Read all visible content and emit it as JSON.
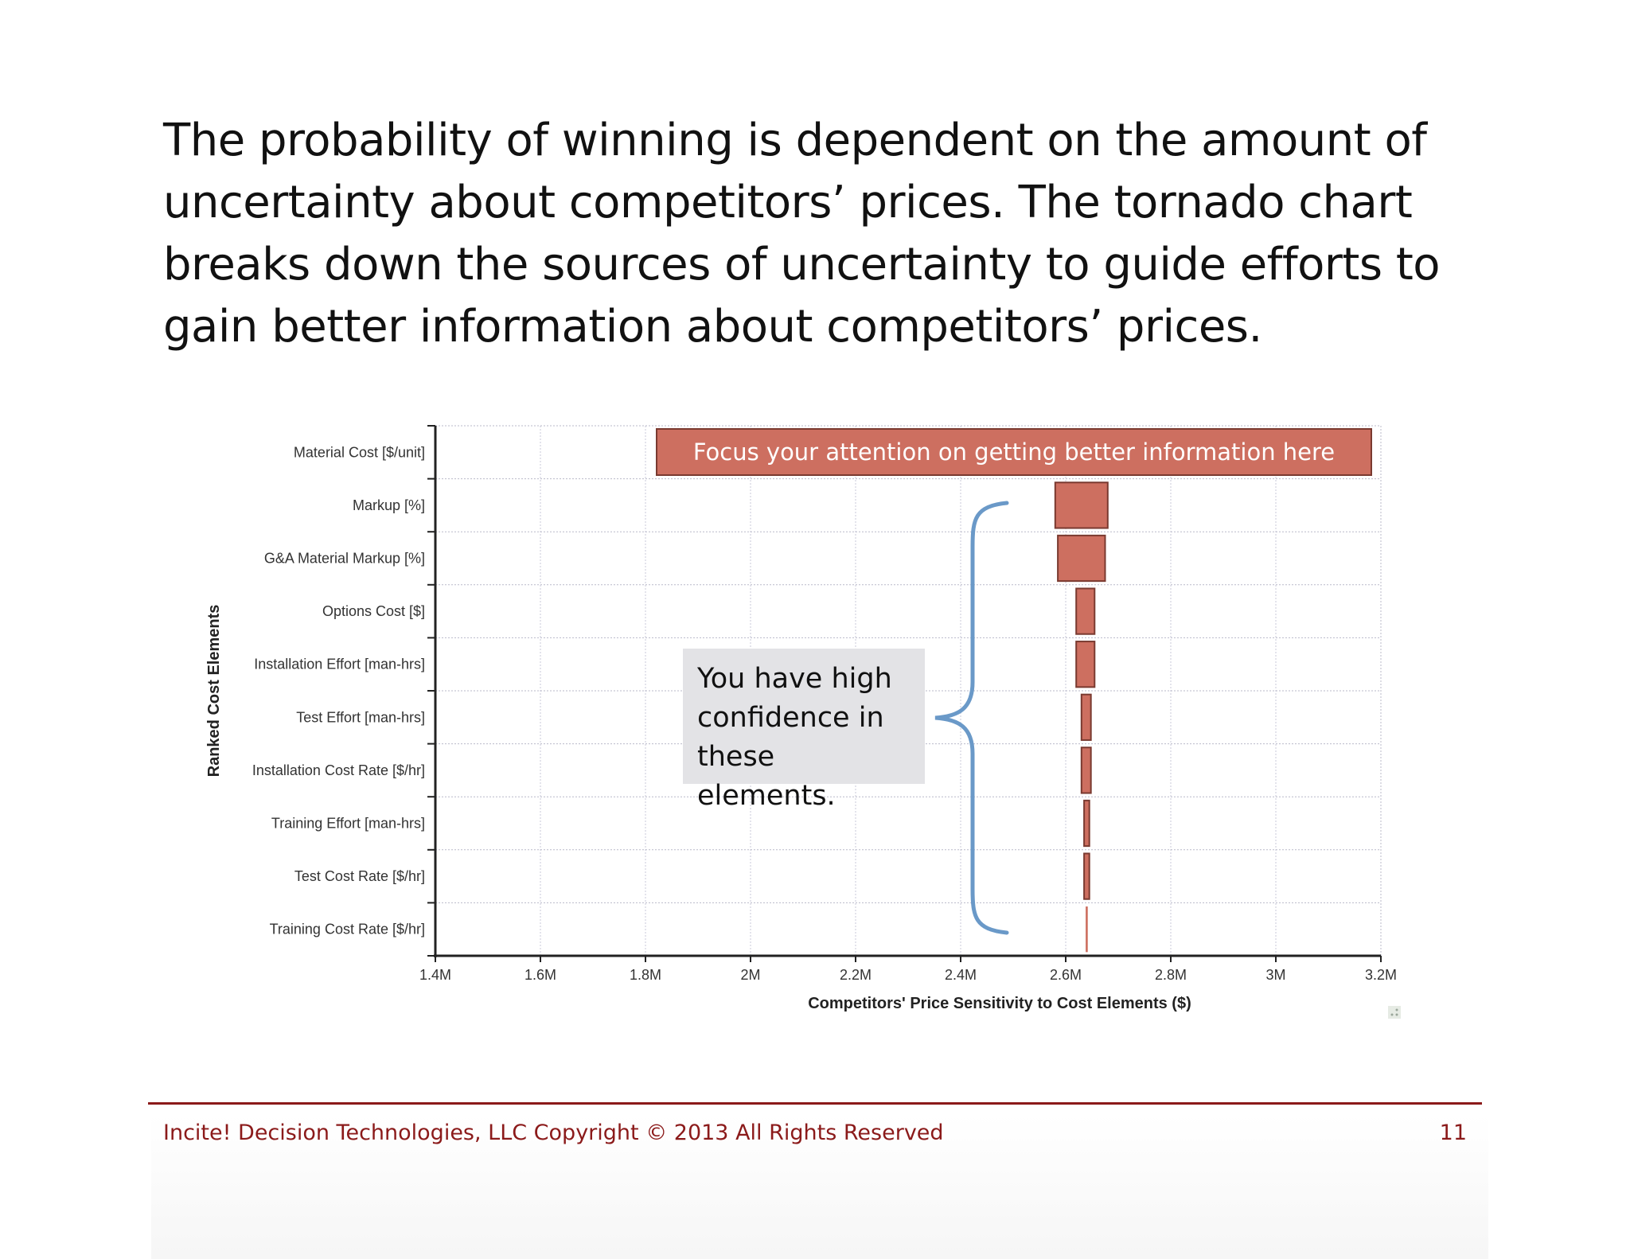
{
  "heading": "The probability of winning is dependent on the amount of uncertainty about competitors’ prices. The tornado chart breaks down the sources of uncertainty to guide efforts to gain better information about competitors’ prices.",
  "chart_data": {
    "type": "bar",
    "orientation": "horizontal",
    "chart_style": "tornado",
    "xlabel": "Competitors' Price Sensitivity to Cost Elements ($)",
    "ylabel": "Ranked Cost Elements",
    "xlim": [
      1400000,
      3200000
    ],
    "xticks": [
      1400000,
      1600000,
      1800000,
      2000000,
      2200000,
      2400000,
      2600000,
      2800000,
      3000000,
      3200000
    ],
    "xtick_labels": [
      "1.4M",
      "1.6M",
      "1.8M",
      "2M",
      "2.2M",
      "2.4M",
      "2.6M",
      "2.8M",
      "3M",
      "3.2M"
    ],
    "baseline": 2640000,
    "grid": true,
    "categories": [
      "Material Cost [$/unit]",
      "Markup [%]",
      "G&A Material Markup [%]",
      "Options Cost [$]",
      "Installation Effort [man-hrs]",
      "Test Effort [man-hrs]",
      "Installation Cost Rate [$/hr]",
      "Training Effort [man-hrs]",
      "Test Cost Rate [$/hr]",
      "Training Cost Rate [$/hr]"
    ],
    "ranges": [
      [
        1820000,
        3190000
      ],
      [
        2580000,
        2680000
      ],
      [
        2585000,
        2675000
      ],
      [
        2620000,
        2655000
      ],
      [
        2620000,
        2655000
      ],
      [
        2630000,
        2648000
      ],
      [
        2630000,
        2648000
      ],
      [
        2635000,
        2645000
      ],
      [
        2635000,
        2645000
      ],
      [
        2638000,
        2642000
      ]
    ],
    "colors": {
      "bar": "#cd6f60",
      "bar_border": "#7a3a30",
      "bracket": "#6a99c8"
    }
  },
  "callouts": {
    "top": "Focus your attention on getting better information here",
    "left": "You have high confidence in these elements."
  },
  "footer": {
    "copyright": "Incite! Decision Technologies, LLC Copyright © 2013 All Rights Reserved",
    "page": "11"
  }
}
